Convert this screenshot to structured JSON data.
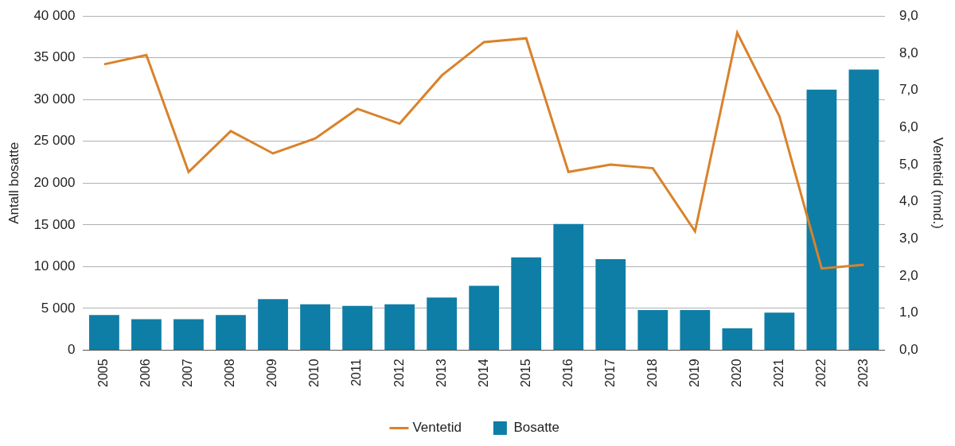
{
  "chart_data": {
    "type": "bar",
    "categories": [
      "2005",
      "2006",
      "2007",
      "2008",
      "2009",
      "2010",
      "2011",
      "2012",
      "2013",
      "2014",
      "2015",
      "2016",
      "2017",
      "2018",
      "2019",
      "2020",
      "2021",
      "2022",
      "2023"
    ],
    "series": [
      {
        "name": "Bosatte",
        "type": "bar",
        "color": "#0e7ea6",
        "axis": "y",
        "values": [
          4200,
          3700,
          3700,
          4200,
          6100,
          5500,
          5300,
          5500,
          6300,
          7700,
          11100,
          15100,
          10900,
          4800,
          4800,
          2600,
          4500,
          31200,
          33600
        ]
      },
      {
        "name": "Ventetid",
        "type": "line",
        "color": "#d9822b",
        "axis": "y2",
        "values": [
          7.7,
          7.95,
          4.8,
          5.9,
          5.3,
          5.7,
          6.5,
          6.1,
          7.4,
          8.3,
          8.4,
          4.8,
          5.0,
          4.9,
          3.2,
          8.55,
          6.3,
          2.2,
          2.3
        ]
      }
    ],
    "y_label": "Antall bosatte",
    "y2_label": "Ventetid (mnd.)",
    "ylim": [
      0,
      40000
    ],
    "yticks": [
      0,
      {
        "value": 5000,
        "label": "5 000"
      },
      {
        "value": 10000,
        "label": "10 000"
      },
      {
        "value": 15000,
        "label": "15 000"
      },
      {
        "value": 20000,
        "label": "20 000"
      },
      {
        "value": 25000,
        "label": "25 000"
      },
      {
        "value": 30000,
        "label": "30 000"
      },
      {
        "value": 35000,
        "label": "35 000"
      },
      {
        "value": 40000,
        "label": "40 000"
      }
    ],
    "y2lim": [
      0,
      9
    ],
    "y2ticks": [
      {
        "value": 0,
        "label": "0,0"
      },
      {
        "value": 1,
        "label": "1,0"
      },
      {
        "value": 2,
        "label": "2,0"
      },
      {
        "value": 3,
        "label": "3,0"
      },
      {
        "value": 4,
        "label": "4,0"
      },
      {
        "value": 5,
        "label": "5,0"
      },
      {
        "value": 6,
        "label": "6,0"
      },
      {
        "value": 7,
        "label": "7,0"
      },
      {
        "value": 8,
        "label": "8,0"
      },
      {
        "value": 9,
        "label": "9,0"
      }
    ],
    "grid": true,
    "legend": "bottom"
  }
}
